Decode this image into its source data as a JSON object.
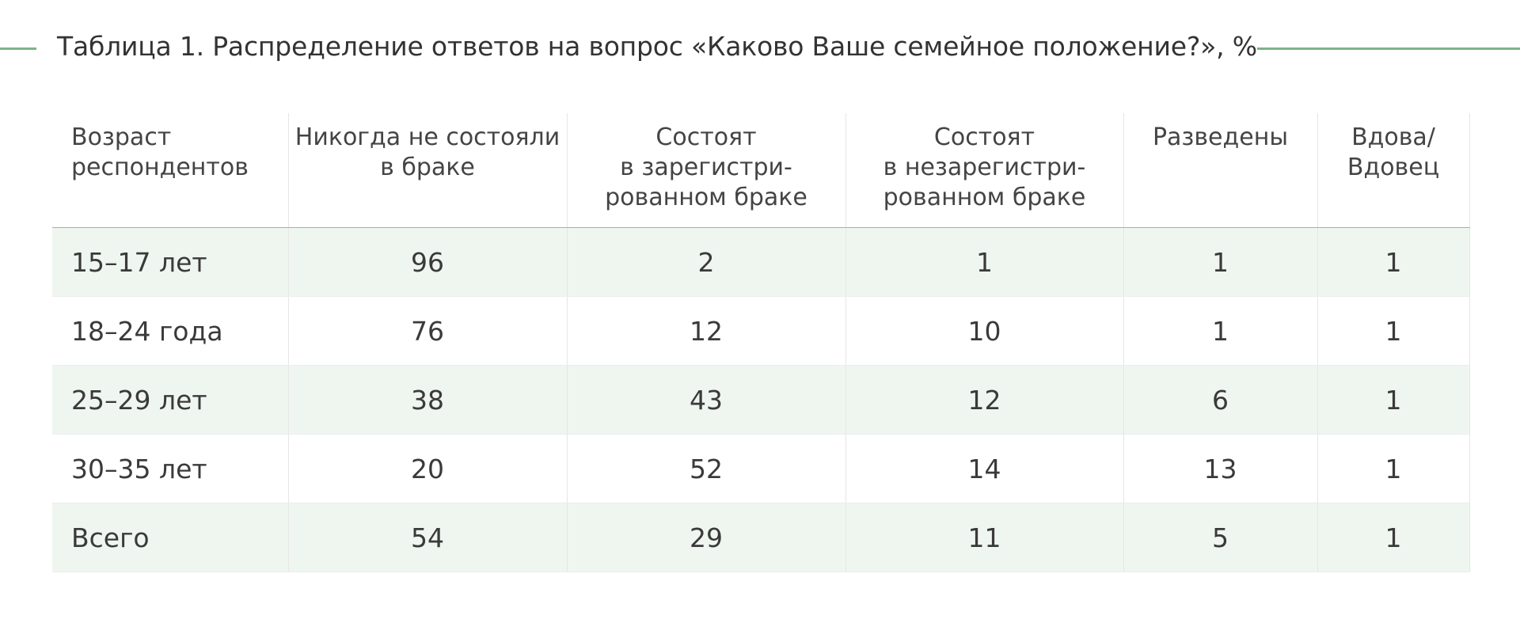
{
  "title": "Таблица 1. Распределение ответов на вопрос «Каково Ваше семейное положение?», %",
  "columns": [
    {
      "lines": [
        "Возраст",
        "респондентов"
      ]
    },
    {
      "lines": [
        "Никогда не состояли",
        "в браке"
      ]
    },
    {
      "lines": [
        "Состоят",
        "в зарегистри-",
        "рованном браке"
      ]
    },
    {
      "lines": [
        "Состоят",
        "в незарегистри-",
        "рованном браке"
      ]
    },
    {
      "lines": [
        "Разведены"
      ]
    },
    {
      "lines": [
        "Вдова/",
        "Вдовец"
      ]
    }
  ],
  "rows": [
    [
      "15–17 лет",
      "96",
      "2",
      "1",
      "1",
      "1"
    ],
    [
      "18–24 года",
      "76",
      "12",
      "10",
      "1",
      "1"
    ],
    [
      "25–29 лет",
      "38",
      "43",
      "12",
      "6",
      "1"
    ],
    [
      "30–35 лет",
      "20",
      "52",
      "14",
      "13",
      "1"
    ],
    [
      "Всего",
      "54",
      "29",
      "11",
      "5",
      "1"
    ]
  ],
  "colors": {
    "accent_line": "#7fb28b",
    "row_shade": "#eff6f0",
    "text": "#3a3a3a"
  }
}
